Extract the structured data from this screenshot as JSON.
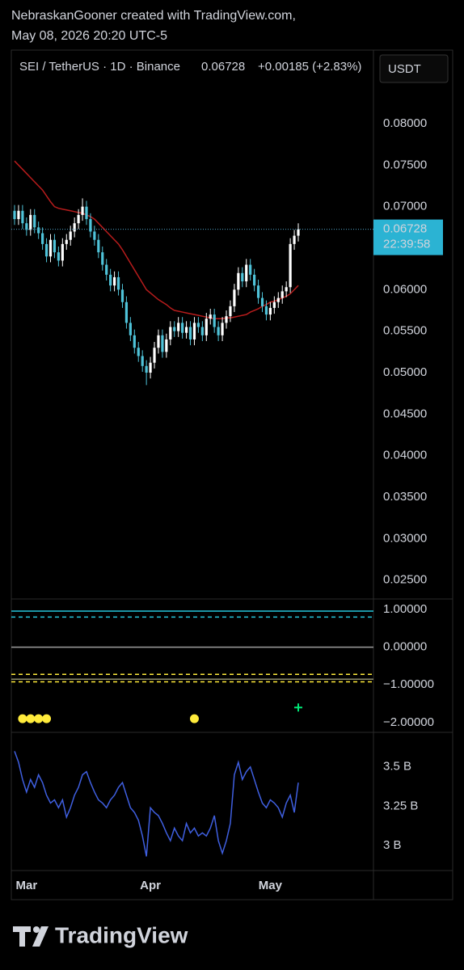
{
  "header": {
    "line1": "NebraskanGooner created with TradingView.com,",
    "line2": "May 08, 2026 20:20 UTC-5"
  },
  "logo": "TradingView",
  "chart_data": [
    {
      "type": "candlestick",
      "title": "SEI / TetherUS · 1D · Binance",
      "last_price": 0.06728,
      "change": "+0.00185 (+2.83%)",
      "currency": "USDT",
      "countdown": "22:39:58",
      "up_color": "#ffffff",
      "down_color": "#4fc3d9",
      "last_color": "#2bb3d3",
      "categories": [
        null,
        null,
        null,
        "Mar",
        null,
        null,
        null,
        null,
        null,
        null,
        null,
        null,
        null,
        null,
        null,
        null,
        null,
        null,
        null,
        null,
        null,
        null,
        null,
        null,
        null,
        null,
        null,
        null,
        null,
        null,
        null,
        null,
        null,
        null,
        "Apr",
        null,
        null,
        null,
        null,
        null,
        null,
        null,
        null,
        null,
        null,
        null,
        null,
        null,
        null,
        null,
        null,
        null,
        null,
        null,
        null,
        null,
        null,
        null,
        null,
        null,
        null,
        null,
        null,
        null,
        "May",
        null,
        null,
        null,
        null,
        null,
        null,
        null
      ],
      "open": [
        0.0695,
        0.0685,
        0.0695,
        0.068,
        0.0672,
        0.069,
        0.0675,
        0.0668,
        0.0655,
        0.064,
        0.066,
        0.0645,
        0.0635,
        0.0655,
        0.066,
        0.067,
        0.068,
        0.069,
        0.07,
        0.0685,
        0.067,
        0.066,
        0.0645,
        0.063,
        0.0618,
        0.0605,
        0.0615,
        0.06,
        0.0585,
        0.056,
        0.0545,
        0.053,
        0.052,
        0.0508,
        0.05,
        0.0512,
        0.053,
        0.0545,
        0.0525,
        0.054,
        0.0555,
        0.055,
        0.056,
        0.0548,
        0.0555,
        0.054,
        0.056,
        0.0555,
        0.0545,
        0.0565,
        0.057,
        0.0555,
        0.0545,
        0.056,
        0.0568,
        0.058,
        0.06,
        0.062,
        0.061,
        0.063,
        0.0618,
        0.0605,
        0.059,
        0.058,
        0.057,
        0.0578,
        0.0585,
        0.059,
        0.0598,
        0.0603,
        0.0655,
        0.0665
      ],
      "high": [
        0.0702,
        0.0702,
        0.0702,
        0.0687,
        0.0697,
        0.0697,
        0.0682,
        0.0675,
        0.0662,
        0.0667,
        0.0667,
        0.0652,
        0.0662,
        0.0667,
        0.0677,
        0.0687,
        0.0697,
        0.071,
        0.0707,
        0.0692,
        0.0677,
        0.0667,
        0.0652,
        0.0637,
        0.0625,
        0.0622,
        0.0622,
        0.0607,
        0.0592,
        0.0567,
        0.0552,
        0.0537,
        0.0527,
        0.0515,
        0.0519,
        0.0537,
        0.0552,
        0.0552,
        0.0547,
        0.0562,
        0.0562,
        0.0567,
        0.0567,
        0.0562,
        0.0562,
        0.0567,
        0.0567,
        0.0562,
        0.0572,
        0.0577,
        0.0577,
        0.0562,
        0.0567,
        0.0575,
        0.0587,
        0.0607,
        0.0627,
        0.0627,
        0.0637,
        0.0637,
        0.0625,
        0.0612,
        0.0597,
        0.0587,
        0.0585,
        0.0592,
        0.0597,
        0.0605,
        0.061,
        0.0662,
        0.0672,
        0.068
      ],
      "low": [
        0.0678,
        0.0678,
        0.0673,
        0.0665,
        0.0665,
        0.0668,
        0.0661,
        0.0648,
        0.0633,
        0.0633,
        0.0638,
        0.0628,
        0.0628,
        0.0648,
        0.0653,
        0.0663,
        0.0673,
        0.0683,
        0.0678,
        0.0663,
        0.0653,
        0.0638,
        0.0623,
        0.0611,
        0.0598,
        0.0598,
        0.0593,
        0.0578,
        0.0553,
        0.0538,
        0.0523,
        0.0513,
        0.0501,
        0.0485,
        0.0493,
        0.0505,
        0.0523,
        0.0518,
        0.0518,
        0.0533,
        0.0543,
        0.0543,
        0.0541,
        0.0541,
        0.0533,
        0.0533,
        0.0548,
        0.0538,
        0.0538,
        0.0558,
        0.0548,
        0.0538,
        0.0538,
        0.0553,
        0.0561,
        0.0573,
        0.0593,
        0.0603,
        0.0603,
        0.0611,
        0.0598,
        0.0583,
        0.0573,
        0.0563,
        0.0563,
        0.0571,
        0.0578,
        0.0583,
        0.0591,
        0.0596,
        0.0648,
        0.0658
      ],
      "close": [
        0.0685,
        0.0695,
        0.068,
        0.0672,
        0.069,
        0.0675,
        0.0668,
        0.0655,
        0.064,
        0.066,
        0.0645,
        0.0635,
        0.0655,
        0.066,
        0.067,
        0.068,
        0.069,
        0.07,
        0.0685,
        0.067,
        0.066,
        0.0645,
        0.063,
        0.0618,
        0.0605,
        0.0615,
        0.06,
        0.0585,
        0.056,
        0.0545,
        0.053,
        0.052,
        0.0508,
        0.05,
        0.0512,
        0.053,
        0.0545,
        0.0525,
        0.054,
        0.0555,
        0.055,
        0.056,
        0.0548,
        0.0555,
        0.054,
        0.056,
        0.0555,
        0.0545,
        0.0565,
        0.057,
        0.0555,
        0.0545,
        0.056,
        0.0568,
        0.058,
        0.06,
        0.062,
        0.061,
        0.063,
        0.0618,
        0.0605,
        0.059,
        0.058,
        0.057,
        0.0578,
        0.0585,
        0.059,
        0.0598,
        0.0603,
        0.0655,
        0.0665,
        0.06728
      ],
      "series": [
        {
          "color": "#b71c1c",
          "values": [
            0.0755,
            0.075,
            0.0745,
            0.074,
            0.0735,
            0.073,
            0.0725,
            0.072,
            0.0713,
            0.0706,
            0.07,
            0.0698,
            0.0697,
            0.0696,
            0.0695,
            0.0694,
            0.0693,
            0.0692,
            0.069,
            0.0688,
            0.0685,
            0.068,
            0.0675,
            0.067,
            0.0665,
            0.066,
            0.0655,
            0.0648,
            0.064,
            0.0632,
            0.0624,
            0.0616,
            0.0608,
            0.06,
            0.0596,
            0.0592,
            0.0588,
            0.0585,
            0.0582,
            0.0578,
            0.0575,
            0.0574,
            0.0573,
            0.0572,
            0.0571,
            0.057,
            0.0569,
            0.0568,
            0.0567,
            0.0566,
            0.0565,
            0.0565,
            0.0565,
            0.0566,
            0.0566,
            0.0567,
            0.0568,
            0.0569,
            0.057,
            0.0573,
            0.0575,
            0.0577,
            0.058,
            0.0582,
            0.0585,
            0.0586,
            0.0588,
            0.059,
            0.0592,
            0.0595,
            0.06,
            0.0605
          ]
        }
      ],
      "ylim": [
        0.02283,
        0.08886
      ],
      "yticks": [
        {
          "value": 0.08,
          "label": "0.08000"
        },
        {
          "value": 0.075,
          "label": "0.07500"
        },
        {
          "value": 0.07,
          "label": "0.07000"
        },
        {
          "value": 0.065,
          "label": "0.06500"
        },
        {
          "value": 0.06,
          "label": "0.06000"
        },
        {
          "value": 0.055,
          "label": "0.05500"
        },
        {
          "value": 0.05,
          "label": "0.05000"
        },
        {
          "value": 0.045,
          "label": "0.04500"
        },
        {
          "value": 0.04,
          "label": "0.04000"
        },
        {
          "value": 0.035,
          "label": "0.03500"
        },
        {
          "value": 0.03,
          "label": "0.03000"
        },
        {
          "value": 0.025,
          "label": "0.02500"
        }
      ]
    },
    {
      "type": "indicator",
      "ylim": [
        -2.24,
        1.26
      ],
      "yticks": [
        {
          "value": 1,
          "label": "1.00000"
        },
        {
          "value": 0,
          "label": "0.00000"
        },
        {
          "value": -1,
          "label": "−1.00000"
        },
        {
          "value": -2,
          "label": "−2.00000"
        }
      ],
      "levels": [
        {
          "value": 0.96,
          "color": "#26c6da",
          "dashed": false
        },
        {
          "value": 0.8,
          "color": "#26c6da",
          "dashed": true
        },
        {
          "value": 0,
          "color": "#9e9e9e",
          "dashed": false
        },
        {
          "value": -0.72,
          "color": "#ffeb3b",
          "dashed": true
        },
        {
          "value": -0.85,
          "color": "#8d8c6e",
          "dashed": false
        },
        {
          "value": -0.92,
          "color": "#ffeb3b",
          "dashed": true
        }
      ],
      "markers": [
        {
          "index": 2,
          "value": -1.9,
          "color": "#ffeb3b",
          "shape": "dot"
        },
        {
          "index": 4,
          "value": -1.9,
          "color": "#ffeb3b",
          "shape": "dot"
        },
        {
          "index": 6,
          "value": -1.9,
          "color": "#ffeb3b",
          "shape": "dot"
        },
        {
          "index": 8,
          "value": -1.9,
          "color": "#ffeb3b",
          "shape": "dot"
        },
        {
          "index": 45,
          "value": -1.9,
          "color": "#ffeb3b",
          "shape": "dot"
        },
        {
          "index": 71,
          "value": -1.6,
          "color": "#00e676",
          "shape": "plus"
        }
      ]
    },
    {
      "type": "line",
      "ylim": [
        2850000000.0,
        3710000000.0
      ],
      "yticks": [
        {
          "value": 3500000000.0,
          "label": "3.5 B"
        },
        {
          "value": 3250000000.0,
          "label": "3.25 B"
        },
        {
          "value": 3000000000.0,
          "label": "3 B"
        }
      ],
      "series": [
        {
          "color": "#3f5fe0",
          "values": [
            3600000000.0,
            3530000000.0,
            3420000000.0,
            3340000000.0,
            3420000000.0,
            3370000000.0,
            3450000000.0,
            3400000000.0,
            3320000000.0,
            3270000000.0,
            3290000000.0,
            3240000000.0,
            3290000000.0,
            3180000000.0,
            3240000000.0,
            3320000000.0,
            3370000000.0,
            3450000000.0,
            3470000000.0,
            3400000000.0,
            3340000000.0,
            3290000000.0,
            3270000000.0,
            3240000000.0,
            3290000000.0,
            3320000000.0,
            3370000000.0,
            3400000000.0,
            3320000000.0,
            3240000000.0,
            3210000000.0,
            3160000000.0,
            3060000000.0,
            2930000000.0,
            3240000000.0,
            3210000000.0,
            3190000000.0,
            3140000000.0,
            3080000000.0,
            3030000000.0,
            3110000000.0,
            3060000000.0,
            3030000000.0,
            3140000000.0,
            3080000000.0,
            3110000000.0,
            3060000000.0,
            3080000000.0,
            3060000000.0,
            3110000000.0,
            3190000000.0,
            3030000000.0,
            2950000000.0,
            3030000000.0,
            3140000000.0,
            3450000000.0,
            3530000000.0,
            3420000000.0,
            3470000000.0,
            3500000000.0,
            3420000000.0,
            3340000000.0,
            3270000000.0,
            3240000000.0,
            3290000000.0,
            3270000000.0,
            3240000000.0,
            3180000000.0,
            3270000000.0,
            3320000000.0,
            3210000000.0,
            3400000000.0
          ]
        }
      ]
    }
  ]
}
